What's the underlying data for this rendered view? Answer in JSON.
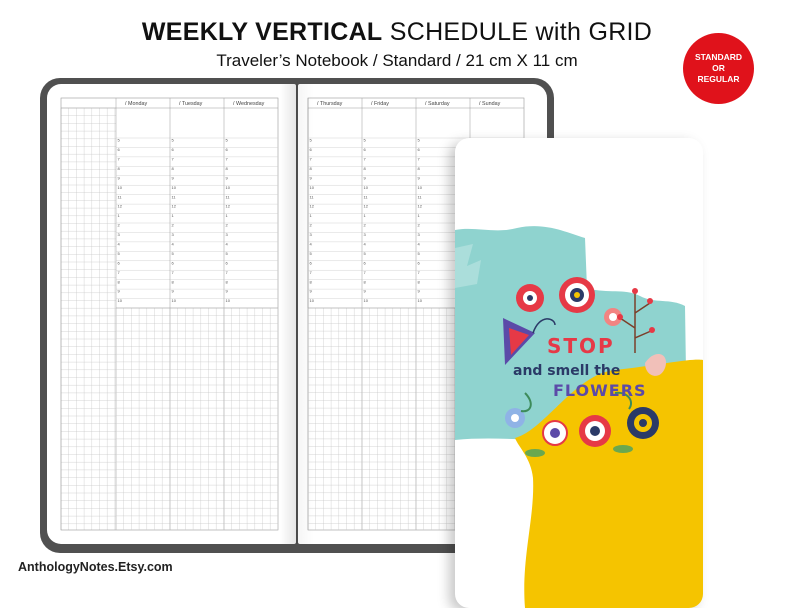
{
  "header": {
    "title_bold": "WEEKLY VERTICAL",
    "title_light": "SCHEDULE with GRID",
    "subtitle": "Traveler’s Notebook / Standard / 21 cm X 11 cm"
  },
  "badge": {
    "line1": "STANDARD",
    "line2": "OR",
    "line3": "REGULAR",
    "color": "#e0121b"
  },
  "footer": {
    "shop": "AnthologyNotes.Etsy.com"
  },
  "planner": {
    "left_days": [
      "/ Monday",
      "/ Tuesday",
      "/ Wednesday"
    ],
    "right_days": [
      "/ Thursday",
      "/ Friday",
      "/ Saturday",
      "/ Sunday"
    ],
    "hours": [
      "5",
      "6",
      "7",
      "8",
      "9",
      "10",
      "11",
      "12",
      "1",
      "2",
      "3",
      "4",
      "5",
      "6",
      "7",
      "8",
      "9",
      "10"
    ]
  },
  "cover": {
    "lines": [
      "STOP",
      "and smell the",
      "FLOWERS"
    ],
    "colors": {
      "mint": "#8fd3cf",
      "yellow": "#f5c400"
    }
  }
}
